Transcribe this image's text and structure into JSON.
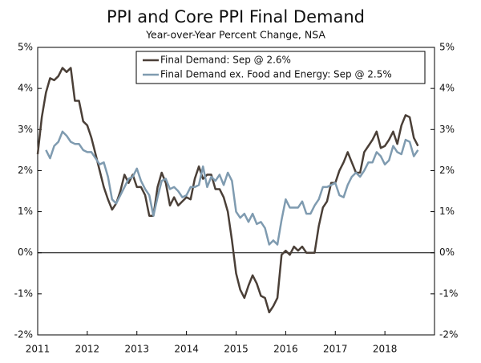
{
  "chart_data": {
    "type": "line",
    "title": "PPI and Core PPI Final Demand",
    "subtitle": "Year-over-Year Percent Change, NSA",
    "x": [
      2011,
      2011.083,
      2011.167,
      2011.25,
      2011.333,
      2011.417,
      2011.5,
      2011.583,
      2011.667,
      2011.75,
      2011.833,
      2011.917,
      2012,
      2012.083,
      2012.167,
      2012.25,
      2012.333,
      2012.417,
      2012.5,
      2012.583,
      2012.667,
      2012.75,
      2012.833,
      2012.917,
      2013,
      2013.083,
      2013.167,
      2013.25,
      2013.333,
      2013.417,
      2013.5,
      2013.583,
      2013.667,
      2013.75,
      2013.833,
      2013.917,
      2014,
      2014.083,
      2014.167,
      2014.25,
      2014.333,
      2014.417,
      2014.5,
      2014.583,
      2014.667,
      2014.75,
      2014.833,
      2014.917,
      2015,
      2015.083,
      2015.167,
      2015.25,
      2015.333,
      2015.417,
      2015.5,
      2015.583,
      2015.667,
      2015.75,
      2015.833,
      2015.917,
      2016,
      2016.083,
      2016.167,
      2016.25,
      2016.333,
      2016.417,
      2016.5,
      2016.583,
      2016.667,
      2016.75,
      2016.833,
      2016.917,
      2017,
      2017.083,
      2017.167,
      2017.25,
      2017.333,
      2017.417,
      2017.5,
      2017.583,
      2017.667,
      2017.75,
      2017.833,
      2017.917,
      2018,
      2018.083,
      2018.167,
      2018.25,
      2018.333,
      2018.417,
      2018.5,
      2018.583,
      2018.667
    ],
    "series": [
      {
        "name": "Final Demand: Sep @ 2.6%",
        "color": "#4a3f37",
        "values": [
          2.4,
          3.3,
          3.9,
          4.25,
          4.2,
          4.3,
          4.5,
          4.4,
          4.5,
          3.7,
          3.7,
          3.2,
          3.1,
          2.8,
          2.4,
          2.0,
          1.6,
          1.3,
          1.05,
          1.2,
          1.5,
          1.9,
          1.7,
          1.9,
          1.6,
          1.6,
          1.4,
          0.9,
          0.9,
          1.6,
          1.95,
          1.7,
          1.15,
          1.35,
          1.15,
          1.25,
          1.35,
          1.3,
          1.8,
          2.1,
          1.8,
          1.9,
          1.9,
          1.55,
          1.55,
          1.35,
          1.0,
          0.3,
          -0.5,
          -0.9,
          -1.1,
          -0.8,
          -0.55,
          -0.75,
          -1.05,
          -1.1,
          -1.45,
          -1.3,
          -1.1,
          -0.05,
          0.05,
          -0.05,
          0.15,
          0.05,
          0.15,
          0.0,
          0.0,
          0.0,
          0.65,
          1.1,
          1.25,
          1.7,
          1.7,
          2.0,
          2.2,
          2.45,
          2.2,
          1.95,
          1.95,
          2.45,
          2.6,
          2.75,
          2.95,
          2.55,
          2.6,
          2.75,
          2.95,
          2.65,
          3.1,
          3.35,
          3.3,
          2.8,
          2.6
        ]
      },
      {
        "name": "Final Demand ex. Food and Energy: Sep @ 2.5%",
        "color": "#7f9bb0",
        "values": [
          null,
          null,
          2.5,
          2.3,
          2.6,
          2.7,
          2.95,
          2.85,
          2.7,
          2.65,
          2.65,
          2.5,
          2.45,
          2.45,
          2.3,
          2.15,
          2.2,
          1.85,
          1.3,
          1.2,
          1.4,
          1.6,
          1.8,
          1.85,
          2.05,
          1.75,
          1.55,
          1.4,
          0.9,
          1.35,
          1.75,
          1.8,
          1.55,
          1.6,
          1.5,
          1.35,
          1.4,
          1.6,
          1.6,
          1.65,
          2.1,
          1.6,
          1.85,
          1.75,
          1.9,
          1.65,
          1.95,
          1.75,
          1.0,
          0.85,
          0.95,
          0.75,
          0.95,
          0.7,
          0.75,
          0.6,
          0.2,
          0.3,
          0.2,
          0.8,
          1.3,
          1.1,
          1.1,
          1.1,
          1.25,
          0.95,
          0.95,
          1.15,
          1.3,
          1.6,
          1.6,
          1.65,
          1.7,
          1.4,
          1.35,
          1.65,
          1.85,
          1.95,
          1.85,
          2.0,
          2.2,
          2.2,
          2.45,
          2.35,
          2.15,
          2.25,
          2.6,
          2.45,
          2.4,
          2.75,
          2.7,
          2.35,
          2.5
        ]
      }
    ],
    "xlim": [
      2011,
      2019
    ],
    "xticks": [
      2011,
      2012,
      2013,
      2014,
      2015,
      2016,
      2017,
      2018
    ],
    "ylim": [
      -2,
      5
    ],
    "yticks": [
      {
        "value": -2,
        "label": "-2%"
      },
      {
        "value": -1,
        "label": "-1%"
      },
      {
        "value": 0,
        "label": "0%"
      },
      {
        "value": 1,
        "label": "1%"
      },
      {
        "value": 2,
        "label": "2%"
      },
      {
        "value": 3,
        "label": "3%"
      },
      {
        "value": 4,
        "label": "4%"
      },
      {
        "value": 5,
        "label": "5%"
      }
    ],
    "y2lim": [
      -2,
      5
    ],
    "y2ticks": [
      {
        "value": -2,
        "label": "-2%"
      },
      {
        "value": -1,
        "label": "-1%"
      },
      {
        "value": 0,
        "label": "0%"
      },
      {
        "value": 1,
        "label": "1%"
      },
      {
        "value": 2,
        "label": "2%"
      },
      {
        "value": 3,
        "label": "3%"
      },
      {
        "value": 4,
        "label": "4%"
      },
      {
        "value": 5,
        "label": "5%"
      }
    ],
    "legend": "top-right"
  }
}
